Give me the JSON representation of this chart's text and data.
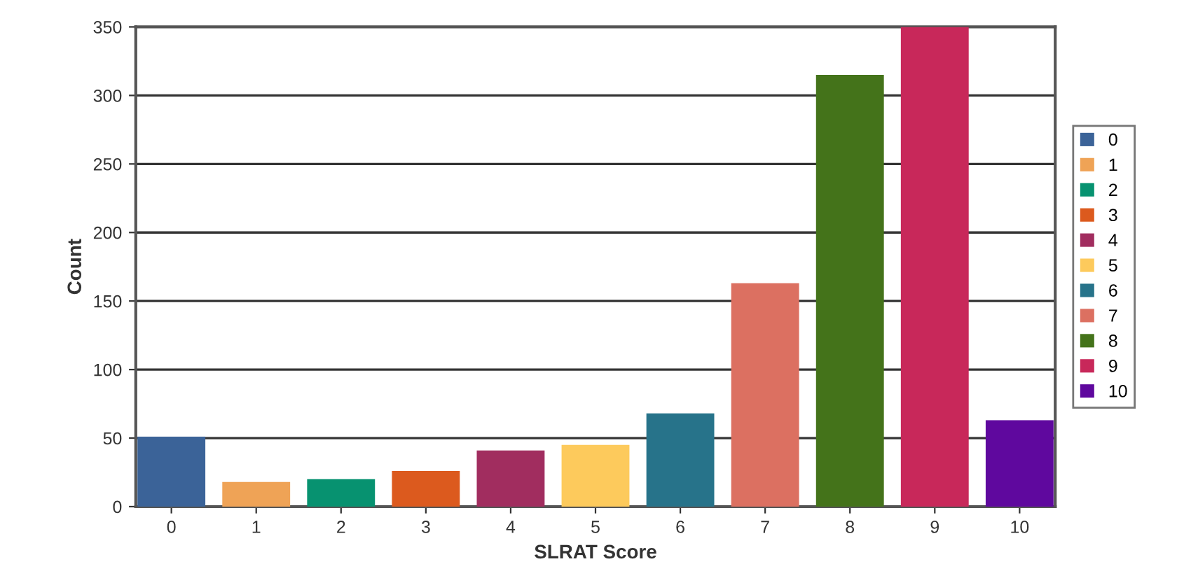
{
  "chart_data": {
    "type": "bar",
    "xlabel": "SLRAT Score",
    "ylabel": "Count",
    "stacked": true,
    "categories": [
      "0",
      "1",
      "2",
      "3",
      "4",
      "5",
      "6",
      "7",
      "8",
      "9",
      "10"
    ],
    "series": [
      {
        "name": "0",
        "color": "#3b6398",
        "values": [
          51,
          null,
          null,
          null,
          null,
          null,
          null,
          null,
          null,
          null,
          null
        ]
      },
      {
        "name": "1",
        "color": "#efa356",
        "values": [
          null,
          18,
          null,
          null,
          null,
          null,
          null,
          null,
          null,
          null,
          null
        ]
      },
      {
        "name": "2",
        "color": "#079270",
        "values": [
          null,
          null,
          20,
          null,
          null,
          null,
          null,
          null,
          null,
          null,
          null
        ]
      },
      {
        "name": "3",
        "color": "#dc5a1e",
        "values": [
          null,
          null,
          null,
          26,
          null,
          null,
          null,
          null,
          null,
          null,
          null
        ]
      },
      {
        "name": "4",
        "color": "#a12d5f",
        "values": [
          null,
          null,
          null,
          null,
          41,
          null,
          null,
          null,
          null,
          null,
          null
        ]
      },
      {
        "name": "5",
        "color": "#fdca5c",
        "values": [
          null,
          null,
          null,
          null,
          null,
          45,
          null,
          null,
          null,
          null,
          null
        ]
      },
      {
        "name": "6",
        "color": "#27738a",
        "values": [
          null,
          null,
          null,
          null,
          null,
          null,
          68,
          null,
          null,
          null,
          null
        ]
      },
      {
        "name": "7",
        "color": "#dc7061",
        "values": [
          null,
          null,
          null,
          null,
          null,
          null,
          null,
          163,
          null,
          null,
          null
        ]
      },
      {
        "name": "8",
        "color": "#44731a",
        "values": [
          null,
          null,
          null,
          null,
          null,
          null,
          null,
          null,
          315,
          null,
          null
        ]
      },
      {
        "name": "9",
        "color": "#c8285a",
        "values": [
          null,
          null,
          null,
          null,
          null,
          null,
          null,
          null,
          null,
          350,
          null
        ]
      },
      {
        "name": "10",
        "color": "#5f089e",
        "values": [
          null,
          null,
          null,
          null,
          null,
          null,
          null,
          null,
          null,
          null,
          63
        ]
      }
    ],
    "ylim": [
      0,
      350
    ],
    "yticks": [
      0,
      50,
      100,
      150,
      200,
      250,
      300,
      350
    ],
    "grid": "y",
    "legend": "right"
  }
}
